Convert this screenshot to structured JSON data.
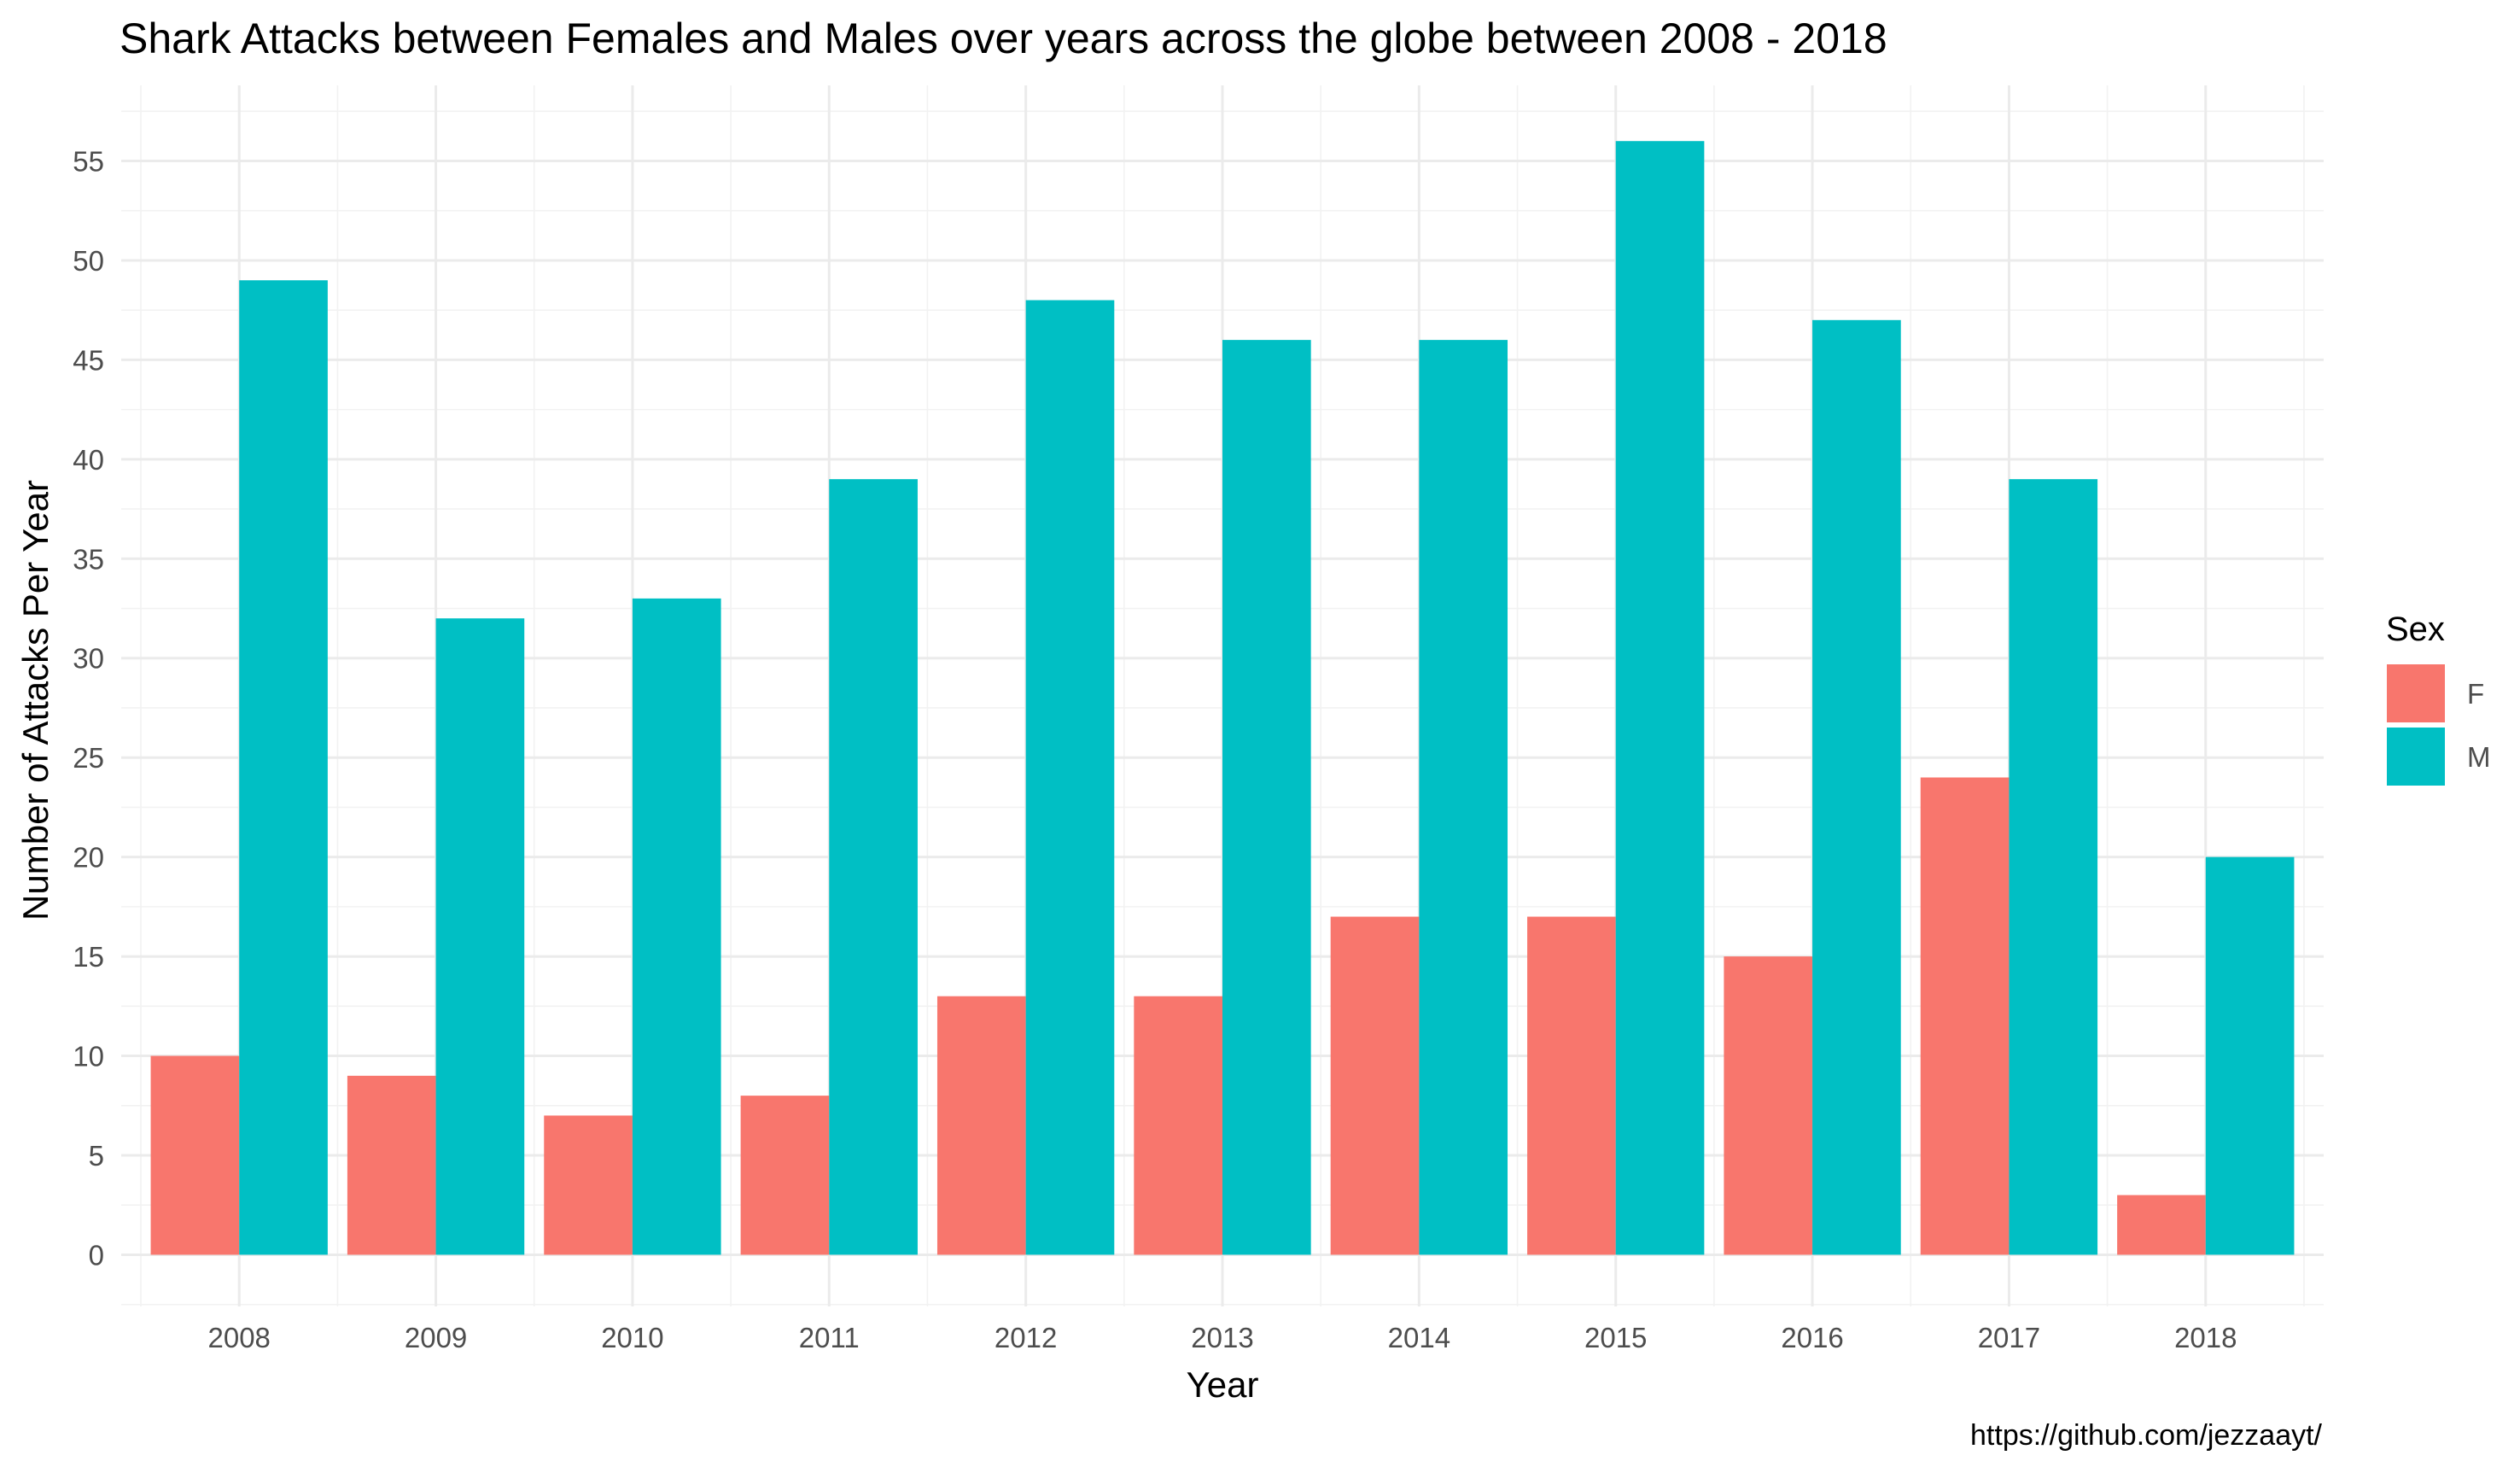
{
  "chart_data": {
    "type": "bar",
    "title": "Shark Attacks between Females and Males over years across the globe between 2008 - 2018",
    "xlabel": "Year",
    "ylabel": "Number of Attacks Per Year",
    "categories": [
      "2008",
      "2009",
      "2010",
      "2011",
      "2012",
      "2013",
      "2014",
      "2015",
      "2016",
      "2017",
      "2018"
    ],
    "series": [
      {
        "name": "F",
        "color": "#F8766D",
        "values": [
          10,
          9,
          7,
          8,
          13,
          13,
          17,
          17,
          15,
          24,
          3
        ]
      },
      {
        "name": "M",
        "color": "#00BFC4",
        "values": [
          49,
          32,
          33,
          39,
          48,
          46,
          46,
          56,
          47,
          39,
          20
        ]
      }
    ],
    "yticks": [
      0,
      5,
      10,
      15,
      20,
      25,
      30,
      35,
      40,
      45,
      50,
      55
    ],
    "ylim": [
      -2.6,
      58.8
    ],
    "grid": true,
    "legend": {
      "title": "Sex",
      "position": "right"
    },
    "caption": "https://github.com/jezzaayt/"
  }
}
